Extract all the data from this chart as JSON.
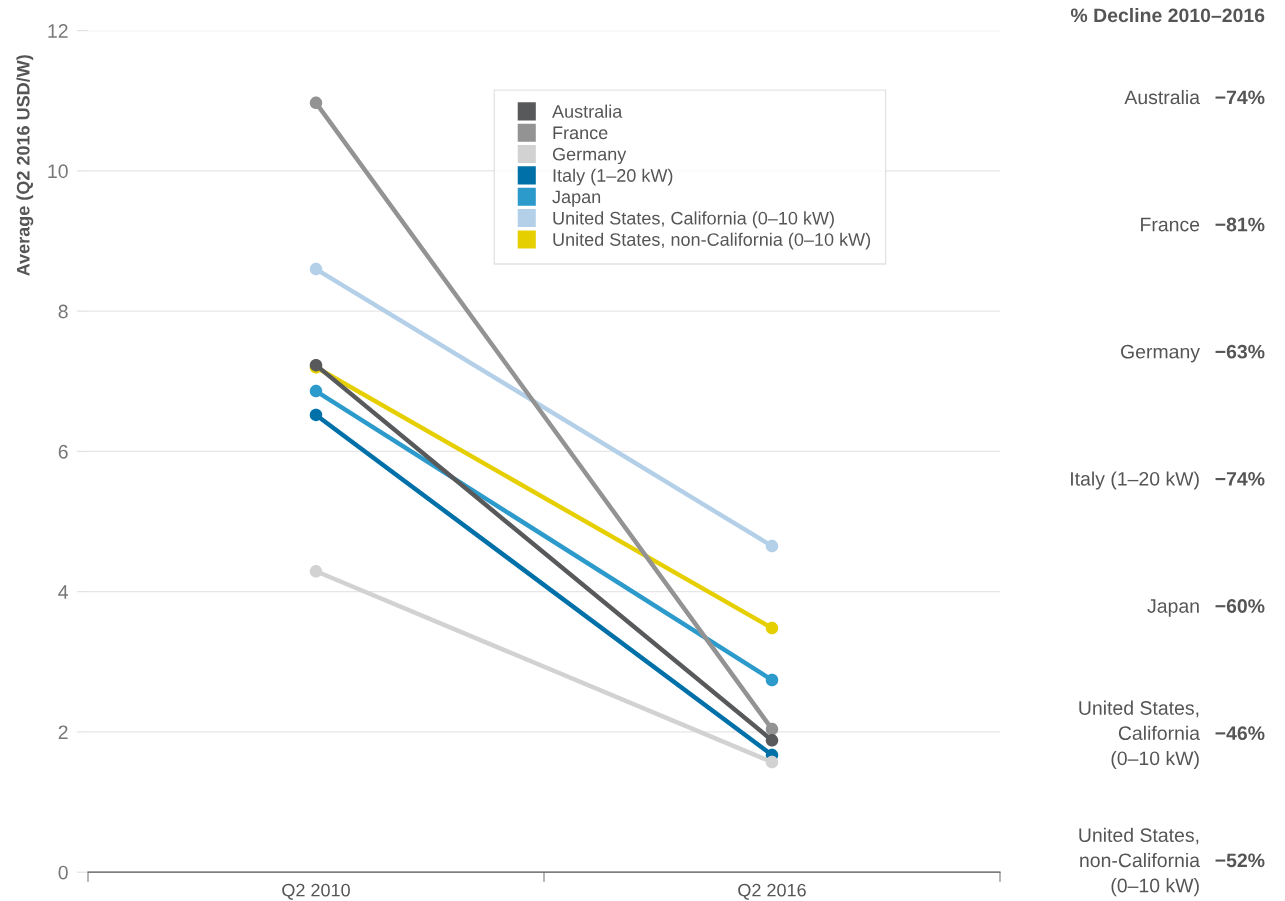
{
  "chart_data": {
    "type": "line",
    "ylabel": "Average (Q2 2016 USD/W)",
    "categories": [
      "Q2 2010",
      "Q2 2016"
    ],
    "series": [
      {
        "name": "Australia",
        "color": "#58595b",
        "values": [
          7.23,
          1.88
        ]
      },
      {
        "name": "France",
        "color": "#939393",
        "values": [
          10.97,
          2.04
        ]
      },
      {
        "name": "Germany",
        "color": "#d2d2d2",
        "values": [
          4.29,
          1.57
        ]
      },
      {
        "name": "Italy (1–20 kW)",
        "color": "#0070a8",
        "values": [
          6.52,
          1.67
        ]
      },
      {
        "name": "Japan",
        "color": "#2c9acb",
        "values": [
          6.86,
          2.74
        ]
      },
      {
        "name": "United States, California (0–10 kW)",
        "color": "#b4d0e8",
        "values": [
          8.6,
          4.65
        ]
      },
      {
        "name": "United States, non-California (0–10 kW)",
        "color": "#e6cf00",
        "values": [
          7.2,
          3.48
        ]
      }
    ],
    "ylim": [
      0,
      12
    ],
    "yticks": [
      0,
      2,
      4,
      6,
      8,
      10,
      12
    ],
    "grid": "y",
    "legend": "top",
    "marker": "circle",
    "line_style": "solid",
    "annotations": [
      "% Decline 2010–2016",
      "Australia",
      "−74%",
      "France",
      "−81%",
      "Germany",
      "−63%",
      "Italy (1–20 kW)",
      "−74%",
      "Japan",
      "−60%",
      "United States,\nCalifornia\n(0–10 kW)",
      "−46%",
      "United States,\nnon-California\n(0–10 kW)",
      "−52%"
    ]
  }
}
